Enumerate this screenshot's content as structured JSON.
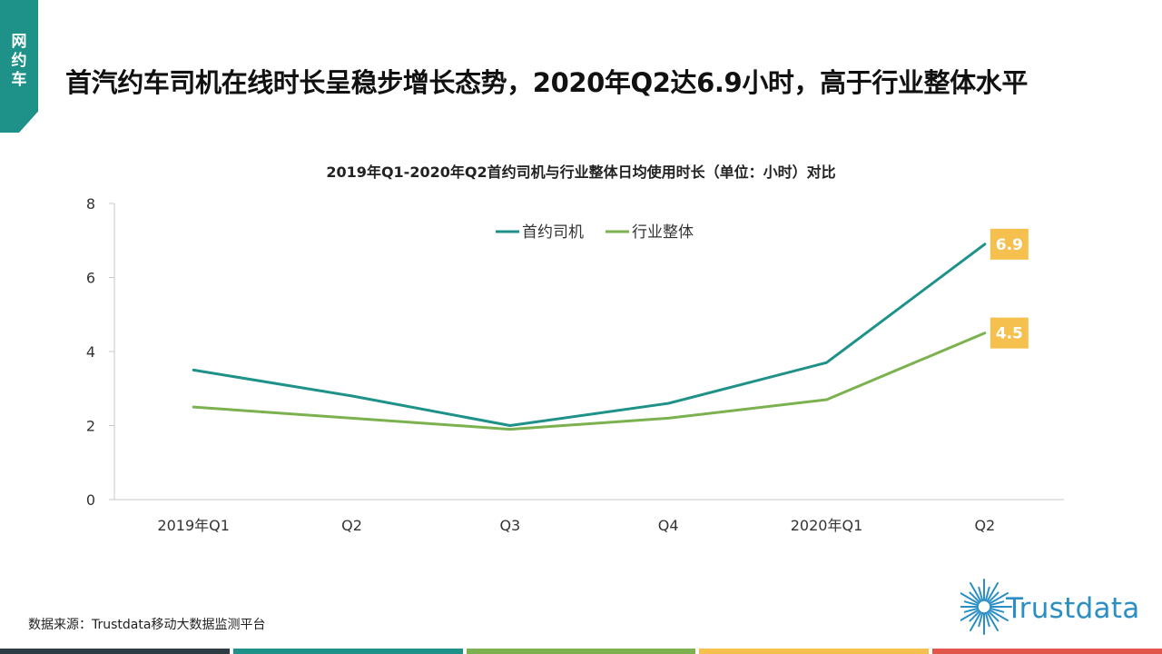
{
  "section_tag": "网约车",
  "headline": "首汽约车司机在线时长呈稳步增长态势，2020年Q2达6.9小时，高于行业整体水平",
  "source_note": "数据来源：Trustdata移动大数据监测平台",
  "brand": {
    "name": "Trustdata",
    "color": "#2b8fc4"
  },
  "footer_bar_colors": [
    "#2d3b45",
    "#1e9188",
    "#7bb24f",
    "#f5c04e",
    "#e2574c"
  ],
  "chart_data": {
    "type": "line",
    "title": "2019年Q1-2020年Q2首约司机与行业整体日均使用时长（单位：小时）对比",
    "xlabel": "",
    "ylabel": "",
    "categories": [
      "2019年Q1",
      "Q2",
      "Q3",
      "Q4",
      "2020年Q1",
      "Q2"
    ],
    "ylim": [
      0,
      8
    ],
    "yticks": [
      0,
      2,
      4,
      6,
      8
    ],
    "grid": false,
    "legend_position": "top-center",
    "series": [
      {
        "name": "首约司机",
        "color": "#1e9188",
        "values": [
          3.5,
          2.8,
          2.0,
          2.6,
          3.7,
          6.9
        ],
        "end_label": "6.9"
      },
      {
        "name": "行业整体",
        "color": "#7bb24f",
        "values": [
          2.5,
          2.2,
          1.9,
          2.2,
          2.7,
          4.5
        ],
        "end_label": "4.5"
      }
    ],
    "label_box_color": "#f5c04e"
  }
}
